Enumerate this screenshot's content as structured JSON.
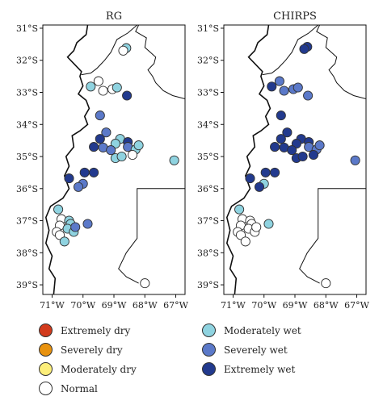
{
  "maps": [
    {
      "title": "RG",
      "stations": [
        {
          "lon": -68.6,
          "lat": -31.62,
          "cat": "moderately_wet"
        },
        {
          "lon": -68.7,
          "lat": -31.7,
          "cat": "normal"
        },
        {
          "lon": -69.75,
          "lat": -32.82,
          "cat": "moderately_wet"
        },
        {
          "lon": -69.5,
          "lat": -32.65,
          "cat": "normal"
        },
        {
          "lon": -69.35,
          "lat": -32.95,
          "cat": "normal"
        },
        {
          "lon": -69.05,
          "lat": -32.9,
          "cat": "normal"
        },
        {
          "lon": -68.9,
          "lat": -32.85,
          "cat": "moderately_wet"
        },
        {
          "lon": -68.58,
          "lat": -33.1,
          "cat": "extremely_wet"
        },
        {
          "lon": -69.45,
          "lat": -33.72,
          "cat": "severely_wet"
        },
        {
          "lon": -69.25,
          "lat": -34.25,
          "cat": "severely_wet"
        },
        {
          "lon": -69.45,
          "lat": -34.45,
          "cat": "extremely_wet"
        },
        {
          "lon": -68.8,
          "lat": -34.45,
          "cat": "moderately_wet"
        },
        {
          "lon": -68.55,
          "lat": -34.55,
          "cat": "extremely_wet"
        },
        {
          "lon": -69.65,
          "lat": -34.7,
          "cat": "extremely_wet"
        },
        {
          "lon": -69.35,
          "lat": -34.72,
          "cat": "severely_wet"
        },
        {
          "lon": -68.95,
          "lat": -34.6,
          "cat": "moderately_wet"
        },
        {
          "lon": -68.55,
          "lat": -34.7,
          "cat": "severely_wet"
        },
        {
          "lon": -68.3,
          "lat": -34.78,
          "cat": "moderately_wet"
        },
        {
          "lon": -68.2,
          "lat": -34.65,
          "cat": "moderately_wet"
        },
        {
          "lon": -69.1,
          "lat": -34.8,
          "cat": "severely_wet"
        },
        {
          "lon": -68.95,
          "lat": -35.05,
          "cat": "moderately_wet"
        },
        {
          "lon": -68.75,
          "lat": -35.0,
          "cat": "moderately_wet"
        },
        {
          "lon": -68.4,
          "lat": -34.95,
          "cat": "normal"
        },
        {
          "lon": -67.05,
          "lat": -35.12,
          "cat": "moderately_wet"
        },
        {
          "lon": -69.95,
          "lat": -35.5,
          "cat": "extremely_wet"
        },
        {
          "lon": -69.65,
          "lat": -35.5,
          "cat": "extremely_wet"
        },
        {
          "lon": -70.45,
          "lat": -35.68,
          "cat": "extremely_wet"
        },
        {
          "lon": -70.0,
          "lat": -35.85,
          "cat": "severely_wet"
        },
        {
          "lon": -70.15,
          "lat": -35.95,
          "cat": "severely_wet"
        },
        {
          "lon": -70.8,
          "lat": -36.65,
          "cat": "moderately_wet"
        },
        {
          "lon": -70.7,
          "lat": -36.95,
          "cat": "normal"
        },
        {
          "lon": -70.45,
          "lat": -37.0,
          "cat": "moderately_wet"
        },
        {
          "lon": -70.4,
          "lat": -37.1,
          "cat": "moderately_wet"
        },
        {
          "lon": -70.75,
          "lat": -37.15,
          "cat": "normal"
        },
        {
          "lon": -70.5,
          "lat": -37.25,
          "cat": "moderately_wet"
        },
        {
          "lon": -70.85,
          "lat": -37.35,
          "cat": "normal"
        },
        {
          "lon": -70.3,
          "lat": -37.35,
          "cat": "moderately_wet"
        },
        {
          "lon": -70.75,
          "lat": -37.45,
          "cat": "normal"
        },
        {
          "lon": -70.6,
          "lat": -37.65,
          "cat": "moderately_wet"
        },
        {
          "lon": -70.25,
          "lat": -37.2,
          "cat": "severely_wet"
        },
        {
          "lon": -69.85,
          "lat": -37.1,
          "cat": "severely_wet"
        },
        {
          "lon": -68.0,
          "lat": -38.95,
          "cat": "normal"
        }
      ]
    },
    {
      "title": "CHIRPS",
      "stations": [
        {
          "lon": -68.6,
          "lat": -31.58,
          "cat": "extremely_wet"
        },
        {
          "lon": -68.7,
          "lat": -31.65,
          "cat": "extremely_wet"
        },
        {
          "lon": -69.75,
          "lat": -32.82,
          "cat": "extremely_wet"
        },
        {
          "lon": -69.5,
          "lat": -32.65,
          "cat": "severely_wet"
        },
        {
          "lon": -69.35,
          "lat": -32.95,
          "cat": "severely_wet"
        },
        {
          "lon": -69.05,
          "lat": -32.9,
          "cat": "severely_wet"
        },
        {
          "lon": -68.9,
          "lat": -32.85,
          "cat": "severely_wet"
        },
        {
          "lon": -68.58,
          "lat": -33.1,
          "cat": "severely_wet"
        },
        {
          "lon": -69.45,
          "lat": -33.72,
          "cat": "extremely_wet"
        },
        {
          "lon": -69.25,
          "lat": -34.25,
          "cat": "extremely_wet"
        },
        {
          "lon": -69.45,
          "lat": -34.45,
          "cat": "extremely_wet"
        },
        {
          "lon": -68.8,
          "lat": -34.45,
          "cat": "extremely_wet"
        },
        {
          "lon": -68.55,
          "lat": -34.55,
          "cat": "extremely_wet"
        },
        {
          "lon": -69.65,
          "lat": -34.7,
          "cat": "extremely_wet"
        },
        {
          "lon": -69.35,
          "lat": -34.72,
          "cat": "extremely_wet"
        },
        {
          "lon": -68.95,
          "lat": -34.6,
          "cat": "extremely_wet"
        },
        {
          "lon": -68.55,
          "lat": -34.7,
          "cat": "severely_wet"
        },
        {
          "lon": -68.3,
          "lat": -34.78,
          "cat": "severely_wet"
        },
        {
          "lon": -68.2,
          "lat": -34.65,
          "cat": "severely_wet"
        },
        {
          "lon": -69.1,
          "lat": -34.8,
          "cat": "extremely_wet"
        },
        {
          "lon": -68.95,
          "lat": -35.05,
          "cat": "extremely_wet"
        },
        {
          "lon": -68.75,
          "lat": -35.0,
          "cat": "extremely_wet"
        },
        {
          "lon": -68.4,
          "lat": -34.95,
          "cat": "extremely_wet"
        },
        {
          "lon": -67.05,
          "lat": -35.12,
          "cat": "severely_wet"
        },
        {
          "lon": -69.95,
          "lat": -35.5,
          "cat": "extremely_wet"
        },
        {
          "lon": -69.65,
          "lat": -35.5,
          "cat": "extremely_wet"
        },
        {
          "lon": -70.45,
          "lat": -35.68,
          "cat": "extremely_wet"
        },
        {
          "lon": -70.0,
          "lat": -35.85,
          "cat": "moderately_wet"
        },
        {
          "lon": -70.15,
          "lat": -35.95,
          "cat": "extremely_wet"
        },
        {
          "lon": -70.8,
          "lat": -36.65,
          "cat": "moderately_wet"
        },
        {
          "lon": -70.7,
          "lat": -36.95,
          "cat": "normal"
        },
        {
          "lon": -70.45,
          "lat": -37.0,
          "cat": "normal"
        },
        {
          "lon": -70.4,
          "lat": -37.1,
          "cat": "normal"
        },
        {
          "lon": -70.75,
          "lat": -37.15,
          "cat": "normal"
        },
        {
          "lon": -70.5,
          "lat": -37.25,
          "cat": "normal"
        },
        {
          "lon": -70.85,
          "lat": -37.35,
          "cat": "normal"
        },
        {
          "lon": -70.3,
          "lat": -37.35,
          "cat": "normal"
        },
        {
          "lon": -70.75,
          "lat": -37.45,
          "cat": "normal"
        },
        {
          "lon": -70.6,
          "lat": -37.65,
          "cat": "normal"
        },
        {
          "lon": -70.25,
          "lat": -37.2,
          "cat": "normal"
        },
        {
          "lon": -69.85,
          "lat": -37.1,
          "cat": "moderately_wet"
        },
        {
          "lon": -68.0,
          "lat": -38.95,
          "cat": "normal"
        }
      ]
    }
  ],
  "axes": {
    "lat_ticks": [
      {
        "value": -31,
        "label": "31°S"
      },
      {
        "value": -32,
        "label": "32°S"
      },
      {
        "value": -33,
        "label": "33°S"
      },
      {
        "value": -34,
        "label": "34°S"
      },
      {
        "value": -35,
        "label": "35°S"
      },
      {
        "value": -36,
        "label": "36°S"
      },
      {
        "value": -37,
        "label": "37°S"
      },
      {
        "value": -38,
        "label": "38°S"
      },
      {
        "value": -39,
        "label": "39°S"
      }
    ],
    "lon_ticks": [
      {
        "value": -71,
        "label": "71°W"
      },
      {
        "value": -70,
        "label": "70°W"
      },
      {
        "value": -69,
        "label": "69°W"
      },
      {
        "value": -68,
        "label": "68°W"
      },
      {
        "value": -67,
        "label": "67°W"
      }
    ]
  },
  "categories": {
    "extremely_dry": {
      "label": "Extremely dry",
      "color": "#d23a1c"
    },
    "severely_dry": {
      "label": "Severely dry",
      "color": "#e8920f"
    },
    "moderately_dry": {
      "label": "Moderately dry",
      "color": "#fcee7a"
    },
    "normal": {
      "label": "Normal",
      "color": "#ffffff"
    },
    "moderately_wet": {
      "label": "Moderately wet",
      "color": "#8fd3e0"
    },
    "severely_wet": {
      "label": "Severely wet",
      "color": "#5b79c9"
    },
    "extremely_wet": {
      "label": "Extremely wet",
      "color": "#223a8e"
    }
  },
  "legend": [
    "extremely_dry",
    "severely_dry",
    "moderately_dry",
    "normal",
    "moderately_wet",
    "severely_wet",
    "extremely_wet"
  ]
}
